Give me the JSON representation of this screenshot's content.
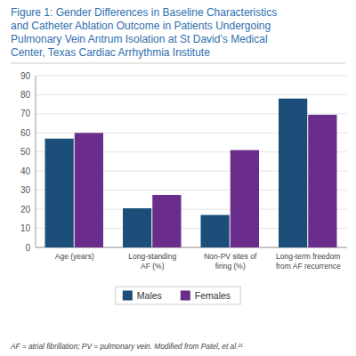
{
  "chart_data": {
    "type": "bar",
    "title": "Figure 1: Gender Differences in Baseline Characteristics\nand Catheter Ablation Outcome in Patients Undergoing\nPulmonary Vein Antrum Isolation at St David’s Medical\nCenter, Texas Cardiac Arrhythmia Institute",
    "categories": [
      "Age (years)",
      "Long-standing\nAF (%)",
      "Non-PV sites of\nfiring (%)",
      "Long-term freedom\nfrom AF recurrence"
    ],
    "series": [
      {
        "name": "Males",
        "color": "#1B4F7A",
        "values": [
          57,
          20.5,
          17,
          78
        ]
      },
      {
        "name": "Females",
        "color": "#6B2D8B",
        "values": [
          60,
          27.5,
          51,
          69.5
        ]
      }
    ],
    "ylim": [
      0,
      90
    ],
    "yticks": [
      0,
      10,
      20,
      30,
      40,
      50,
      60,
      70,
      80,
      90
    ],
    "grid": true,
    "legend": "bottom",
    "footnote": "AF = atrial fibrillation; PV = pulmonary vein. Modified from Patel, et al.²¹"
  }
}
